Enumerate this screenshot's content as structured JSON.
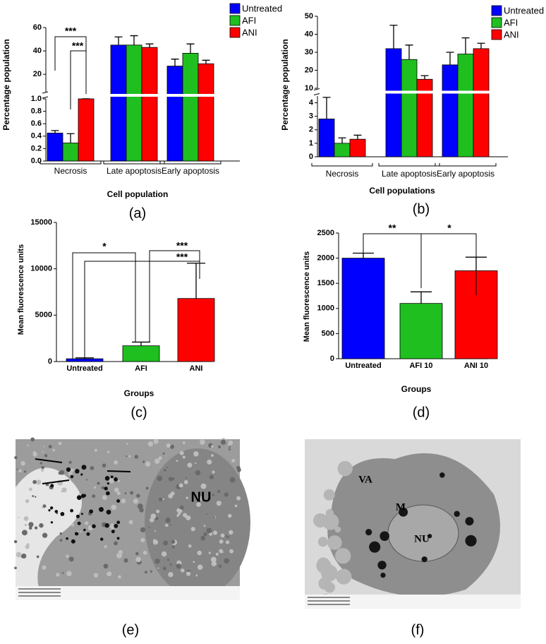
{
  "chart_data": [
    {
      "type": "bar",
      "panel_label": "(a)",
      "y_title": "Percentage population",
      "x_title": "Cell population",
      "categories": [
        "Necrosis",
        "Late apoptosis",
        "Early apoptosis"
      ],
      "series": [
        {
          "name": "Untreated",
          "color": "#0000ff",
          "values": [
            0.45,
            45,
            27
          ],
          "errors": [
            0.04,
            7,
            6
          ]
        },
        {
          "name": "AFI",
          "color": "#1fbf1f",
          "values": [
            0.29,
            45,
            38
          ],
          "errors": [
            0.15,
            8,
            8
          ]
        },
        {
          "name": "ANI",
          "color": "#ff0000",
          "values": [
            1.0,
            43,
            29
          ],
          "errors": [
            0.05,
            3,
            3
          ]
        }
      ],
      "y_segments": [
        {
          "ylim": [
            0,
            1.0
          ],
          "yticks": [
            {
              "value": 0,
              "label": "0.0"
            },
            0.2,
            0.4,
            0.6,
            0.8,
            {
              "value": 1.0,
              "label": "1.0"
            }
          ]
        },
        {
          "ylim": [
            5,
            60
          ],
          "yticks": [
            20,
            40,
            60
          ]
        }
      ],
      "annotations": [
        "***",
        "***"
      ]
    },
    {
      "type": "bar",
      "panel_label": "(b)",
      "y_title": "Percentage population",
      "x_title": "Cell populations",
      "categories": [
        "Necrosis",
        "Late apoptosis",
        "Early apoptosis"
      ],
      "series": [
        {
          "name": "Untreated",
          "color": "#0000ff",
          "values": [
            2.8,
            32,
            23
          ],
          "errors": [
            1.6,
            13,
            7
          ]
        },
        {
          "name": "AFI",
          "color": "#1fbf1f",
          "values": [
            1.0,
            26,
            29
          ],
          "errors": [
            0.4,
            8,
            9
          ]
        },
        {
          "name": "ANI",
          "color": "#ff0000",
          "values": [
            1.3,
            15,
            32
          ],
          "errors": [
            0.3,
            2,
            3
          ]
        }
      ],
      "y_segments": [
        {
          "ylim": [
            0,
            4.5
          ],
          "yticks": [
            0,
            1,
            2,
            3,
            4
          ]
        },
        {
          "ylim": [
            10,
            50
          ],
          "yticks": [
            10,
            20,
            30,
            40,
            50
          ]
        }
      ],
      "annotations": []
    },
    {
      "type": "bar",
      "panel_label": "(c)",
      "y_title": "Mean fluorescence units",
      "x_title": "Groups",
      "categories": [
        "Untreated",
        "AFI",
        "ANI"
      ],
      "values": [
        300,
        1700,
        6800
      ],
      "errors": [
        100,
        400,
        3800
      ],
      "colors": [
        "#0000ff",
        "#1fbf1f",
        "#ff0000"
      ],
      "ylim": [
        0,
        15000
      ],
      "yticks": [
        0,
        5000,
        10000,
        15000
      ],
      "annotations": [
        "*",
        "***",
        "***"
      ]
    },
    {
      "type": "bar",
      "panel_label": "(d)",
      "y_title": "Mean fluorescence units",
      "x_title": "Groups",
      "categories": [
        "Untreated",
        "AFI 10",
        "ANI 10"
      ],
      "values": [
        2000,
        1100,
        1750
      ],
      "errors": [
        100,
        230,
        270
      ],
      "colors": [
        "#0000ff",
        "#1fbf1f",
        "#ff0000"
      ],
      "ylim": [
        0,
        2500
      ],
      "yticks": [
        0,
        500,
        1000,
        1500,
        2000,
        2500
      ],
      "annotations": [
        "**",
        "*"
      ]
    }
  ],
  "micrographs": [
    {
      "label": "(e)",
      "annotations": [
        "NU"
      ]
    },
    {
      "label": "(f)",
      "annotations": [
        "VA",
        "M",
        "NU"
      ]
    }
  ]
}
